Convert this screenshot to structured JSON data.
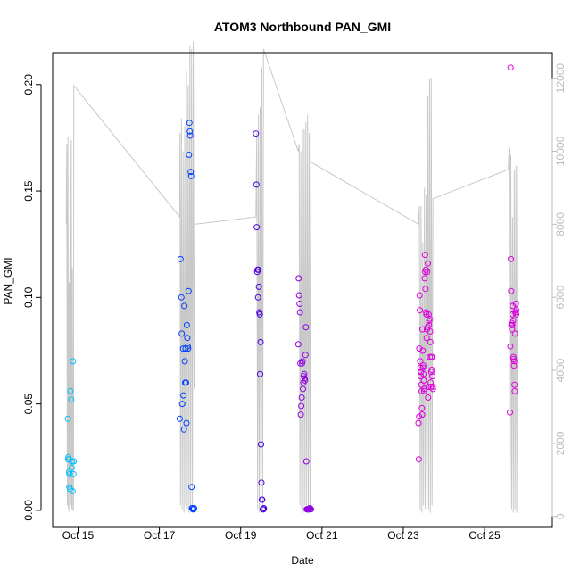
{
  "chart_data": {
    "type": "scatter",
    "title": "ATOM3 Northbound PAN_GMI",
    "xlabel": "Date",
    "ylabel": "PAN_GMI",
    "ylim": [
      -0.008,
      0.215
    ],
    "y2lim": [
      -300,
      12700
    ],
    "xlim": [
      "2016-10-14 09:00",
      "2016-10-26 16:00"
    ],
    "y_ticks": [
      "0.00",
      "0.05",
      "0.10",
      "0.15",
      "0.20"
    ],
    "y2_ticks": [
      "0",
      "2000",
      "4000",
      "6000",
      "8000",
      "10000",
      "12000"
    ],
    "x_ticks": [
      {
        "label": "Oct 15",
        "date": "2016-10-15"
      },
      {
        "label": "Oct 17",
        "date": "2016-10-17"
      },
      {
        "label": "Oct 19",
        "date": "2016-10-19"
      },
      {
        "label": "Oct 21",
        "date": "2016-10-21"
      },
      {
        "label": "Oct 23",
        "date": "2016-10-23"
      },
      {
        "label": "Oct 25",
        "date": "2016-10-25"
      }
    ],
    "point_colors": [
      "#00bfff",
      "#0040ff",
      "#4b00e0",
      "#9000e0",
      "#dd00dd"
    ],
    "altitude_color": "#c8c8c8",
    "altitude_series": {
      "name": "altitude",
      "x": [
        "2016-10-14 17:00",
        "2016-10-14 17:20",
        "2016-10-14 17:40",
        "2016-10-14 18:00",
        "2016-10-14 18:20",
        "2016-10-14 18:40",
        "2016-10-14 19:00",
        "2016-10-14 19:20",
        "2016-10-14 19:40",
        "2016-10-14 20:00",
        "2016-10-14 20:20",
        "2016-10-14 20:40",
        "2016-10-14 21:00",
        "2016-10-14 21:20",
        "2016-10-14 21:30",
        "2016-10-17 12:00",
        "2016-10-17 12:10",
        "2016-10-17 12:30",
        "2016-10-17 13:00",
        "2016-10-17 13:30",
        "2016-10-17 14:00",
        "2016-10-17 14:30",
        "2016-10-17 15:00",
        "2016-10-17 15:30",
        "2016-10-17 16:00",
        "2016-10-17 16:30",
        "2016-10-17 17:00",
        "2016-10-17 17:30",
        "2016-10-17 18:00",
        "2016-10-17 18:30",
        "2016-10-17 19:00",
        "2016-10-17 19:30",
        "2016-10-17 20:00",
        "2016-10-17 20:30",
        "2016-10-17 21:00",
        "2016-10-19 09:00",
        "2016-10-19 09:30",
        "2016-10-19 10:00",
        "2016-10-19 10:30",
        "2016-10-19 11:00",
        "2016-10-19 11:30",
        "2016-10-19 12:00",
        "2016-10-19 12:30",
        "2016-10-19 13:00",
        "2016-10-19 13:30",
        "2016-10-20 10:00",
        "2016-10-20 10:30",
        "2016-10-20 11:00",
        "2016-10-20 11:30",
        "2016-10-20 12:00",
        "2016-10-20 12:30",
        "2016-10-20 13:00",
        "2016-10-20 13:30",
        "2016-10-20 14:00",
        "2016-10-20 14:30",
        "2016-10-20 15:00",
        "2016-10-20 15:30",
        "2016-10-20 16:00",
        "2016-10-20 16:30",
        "2016-10-20 17:00",
        "2016-10-20 17:30",
        "2016-10-23 09:00",
        "2016-10-23 09:30",
        "2016-10-23 10:00",
        "2016-10-23 10:30",
        "2016-10-23 11:00",
        "2016-10-23 11:30",
        "2016-10-23 12:00",
        "2016-10-23 12:30",
        "2016-10-23 13:00",
        "2016-10-23 13:30",
        "2016-10-23 14:00",
        "2016-10-23 14:30",
        "2016-10-23 15:00",
        "2016-10-23 15:30",
        "2016-10-23 16:00",
        "2016-10-23 16:30",
        "2016-10-23 17:00",
        "2016-10-23 17:30",
        "2016-10-25 14:00",
        "2016-10-25 14:30",
        "2016-10-25 15:00",
        "2016-10-25 15:30",
        "2016-10-25 16:00",
        "2016-10-25 16:30",
        "2016-10-25 17:00",
        "2016-10-25 17:30",
        "2016-10-25 18:00",
        "2016-10-25 18:30",
        "2016-10-25 19:00",
        "2016-10-25 19:30"
      ],
      "values": [
        8000,
        10200,
        300,
        10400,
        200,
        6400,
        100,
        10500,
        300,
        10300,
        200,
        6800,
        150,
        200,
        11800,
        8200,
        10500,
        300,
        10900,
        200,
        10000,
        100,
        10700,
        300,
        12200,
        200,
        11800,
        100,
        12900,
        200,
        12800,
        300,
        13000,
        3500,
        8000,
        8200,
        10500,
        200,
        11000,
        100,
        11200,
        150,
        12300,
        200,
        12800,
        10000,
        10200,
        300,
        10000,
        200,
        10600,
        100,
        10600,
        300,
        10800,
        200,
        11000,
        100,
        10500,
        200,
        9700,
        8000,
        8500,
        200,
        8500,
        100,
        7500,
        300,
        9000,
        200,
        8800,
        150,
        11500,
        200,
        12000,
        100,
        12000,
        300,
        8700,
        9500,
        10100,
        100,
        9900,
        200,
        8200,
        100,
        9500,
        200,
        9600,
        100,
        9600
      ]
    },
    "series": [
      {
        "x": [
          "2016-10-14 18:00",
          "2016-10-14 18:10",
          "2016-10-14 18:20",
          "2016-10-14 18:30",
          "2016-10-14 18:40",
          "2016-10-14 18:50",
          "2016-10-14 19:00",
          "2016-10-14 19:15",
          "2016-10-14 19:30",
          "2016-10-14 20:00",
          "2016-10-14 20:15",
          "2016-10-14 20:30",
          "2016-10-14 20:45",
          "2016-10-14 21:00",
          "2016-10-14 21:15",
          "2016-10-14 21:30"
        ],
        "values": [
          0.043,
          0.024,
          0.025,
          0.024,
          0.018,
          0.011,
          0.017,
          0.01,
          0.056,
          0.052,
          0.02,
          0.023,
          0.009,
          0.07,
          0.017,
          0.023
        ]
      },
      {
        "x": [
          "2016-10-17 12:00",
          "2016-10-17 12:30",
          "2016-10-17 13:00",
          "2016-10-17 13:15",
          "2016-10-17 13:30",
          "2016-10-17 14:00",
          "2016-10-17 14:15",
          "2016-10-17 14:30",
          "2016-10-17 14:45",
          "2016-10-17 15:00",
          "2016-10-17 15:15",
          "2016-10-17 15:30",
          "2016-10-17 15:45",
          "2016-10-17 16:00",
          "2016-10-17 16:15",
          "2016-10-17 16:30",
          "2016-10-17 16:45",
          "2016-10-17 17:00",
          "2016-10-17 17:15",
          "2016-10-17 17:30",
          "2016-10-17 17:45",
          "2016-10-17 18:00",
          "2016-10-17 18:15",
          "2016-10-17 18:30",
          "2016-10-17 18:45",
          "2016-10-17 19:00",
          "2016-10-17 19:15",
          "2016-10-17 19:30",
          "2016-10-17 19:45",
          "2016-10-17 20:00",
          "2016-10-17 20:15",
          "2016-10-17 20:30"
        ],
        "values": [
          0.043,
          0.118,
          0.1,
          0.083,
          0.05,
          0.076,
          0.054,
          0.038,
          0.096,
          0.07,
          0.06,
          0.076,
          0.06,
          0.041,
          0.087,
          0.081,
          0.077,
          0.076,
          0.103,
          0.167,
          0.182,
          0.178,
          0.176,
          0.159,
          0.157,
          0.011,
          0.001,
          0.001,
          0.0005,
          0.0005,
          0.0005,
          0.001
        ]
      },
      {
        "x": [
          "2016-10-19 09:00",
          "2016-10-19 09:15",
          "2016-10-19 09:30",
          "2016-10-19 09:45",
          "2016-10-19 10:00",
          "2016-10-19 10:15",
          "2016-10-19 10:30",
          "2016-10-19 10:45",
          "2016-10-19 11:00",
          "2016-10-19 11:15",
          "2016-10-19 11:30",
          "2016-10-19 11:45",
          "2016-10-19 12:00",
          "2016-10-19 12:15",
          "2016-10-19 12:30",
          "2016-10-19 12:45",
          "2016-10-19 13:00",
          "2016-10-19 13:15",
          "2016-10-19 13:30",
          "2016-10-19 13:45"
        ],
        "values": [
          0.177,
          0.153,
          0.133,
          0.112,
          0.113,
          0.1,
          0.113,
          0.105,
          0.093,
          0.092,
          0.064,
          0.079,
          0.031,
          0.013,
          0.005,
          0.005,
          0.0005,
          0.0005,
          0.0005,
          0.001
        ]
      },
      {
        "x": [
          "2016-10-20 10:00",
          "2016-10-20 10:15",
          "2016-10-20 10:30",
          "2016-10-20 10:45",
          "2016-10-20 11:00",
          "2016-10-20 11:15",
          "2016-10-20 11:30",
          "2016-10-20 11:45",
          "2016-10-20 12:00",
          "2016-10-20 12:15",
          "2016-10-20 12:30",
          "2016-10-20 12:45",
          "2016-10-20 13:00",
          "2016-10-20 13:15",
          "2016-10-20 13:30",
          "2016-10-20 13:45",
          "2016-10-20 14:00",
          "2016-10-20 14:15",
          "2016-10-20 14:30",
          "2016-10-20 14:45",
          "2016-10-20 15:00",
          "2016-10-20 15:15",
          "2016-10-20 15:30",
          "2016-10-20 15:45",
          "2016-10-20 16:00",
          "2016-10-20 16:15",
          "2016-10-20 16:30",
          "2016-10-20 16:45",
          "2016-10-20 17:00",
          "2016-10-20 17:15",
          "2016-10-20 17:30"
        ],
        "values": [
          0.078,
          0.109,
          0.101,
          0.097,
          0.093,
          0.069,
          0.045,
          0.049,
          0.053,
          0.069,
          0.07,
          0.057,
          0.06,
          0.063,
          0.064,
          0.062,
          0.061,
          0.073,
          0.086,
          0.023,
          0.0005,
          0.0005,
          0.0005,
          0.0005,
          0.0005,
          0.0005,
          0.0005,
          0.001,
          0.001,
          0.0005,
          0.0005
        ]
      },
      {
        "x": [
          "2016-10-23 09:00",
          "2016-10-23 09:10",
          "2016-10-23 09:20",
          "2016-10-23 09:30",
          "2016-10-23 09:40",
          "2016-10-23 09:50",
          "2016-10-23 10:00",
          "2016-10-23 10:10",
          "2016-10-23 10:20",
          "2016-10-23 10:30",
          "2016-10-23 10:40",
          "2016-10-23 10:50",
          "2016-10-23 11:00",
          "2016-10-23 11:10",
          "2016-10-23 11:20",
          "2016-10-23 11:30",
          "2016-10-23 11:40",
          "2016-10-23 11:50",
          "2016-10-23 12:00",
          "2016-10-23 12:10",
          "2016-10-23 12:20",
          "2016-10-23 12:30",
          "2016-10-23 12:40",
          "2016-10-23 12:50",
          "2016-10-23 13:00",
          "2016-10-23 13:10",
          "2016-10-23 13:20",
          "2016-10-23 13:30",
          "2016-10-23 13:40",
          "2016-10-23 13:50",
          "2016-10-23 14:00",
          "2016-10-23 14:10",
          "2016-10-23 14:20",
          "2016-10-23 14:30",
          "2016-10-23 14:40",
          "2016-10-23 14:50",
          "2016-10-23 15:00",
          "2016-10-23 15:10",
          "2016-10-23 15:20",
          "2016-10-23 15:30",
          "2016-10-23 15:40",
          "2016-10-23 15:50",
          "2016-10-23 16:00",
          "2016-10-23 16:10",
          "2016-10-23 16:20",
          "2016-10-23 16:30",
          "2016-10-23 16:40",
          "2016-10-23 16:50",
          "2016-10-23 17:00",
          "2016-10-23 17:10",
          "2016-10-23 17:20",
          "2016-10-23 17:30",
          "2016-10-25 15:00",
          "2016-10-25 15:10",
          "2016-10-25 15:20",
          "2016-10-25 15:30",
          "2016-10-25 15:40",
          "2016-10-25 15:50",
          "2016-10-25 16:00",
          "2016-10-25 16:10",
          "2016-10-25 16:20",
          "2016-10-25 16:30",
          "2016-10-25 16:40",
          "2016-10-25 16:50",
          "2016-10-25 17:00",
          "2016-10-25 17:10",
          "2016-10-25 17:20",
          "2016-10-25 17:30",
          "2016-10-25 17:40",
          "2016-10-25 17:50",
          "2016-10-25 18:00",
          "2016-10-25 18:10",
          "2016-10-25 18:20",
          "2016-10-25 18:30",
          "2016-10-25 18:40",
          "2016-10-25 18:50"
        ],
        "values": [
          0.041,
          0.024,
          0.044,
          0.076,
          0.101,
          0.094,
          0.07,
          0.067,
          0.063,
          0.065,
          0.059,
          0.056,
          0.048,
          0.045,
          0.085,
          0.075,
          0.067,
          0.068,
          0.064,
          0.061,
          0.056,
          0.057,
          0.109,
          0.12,
          0.112,
          0.104,
          0.113,
          0.093,
          0.092,
          0.081,
          0.085,
          0.112,
          0.086,
          0.116,
          0.053,
          0.058,
          0.092,
          0.087,
          0.089,
          0.09,
          0.072,
          0.084,
          0.079,
          0.06,
          0.058,
          0.065,
          0.072,
          0.066,
          0.072,
          0.063,
          0.058,
          0.057,
          0.046,
          0.077,
          0.208,
          0.118,
          0.103,
          0.087,
          0.088,
          0.085,
          0.087,
          0.092,
          0.096,
          0.089,
          0.072,
          0.071,
          0.068,
          0.07,
          0.059,
          0.056,
          0.083,
          0.093,
          0.093,
          0.097,
          0.092,
          0.094
        ]
      }
    ]
  }
}
